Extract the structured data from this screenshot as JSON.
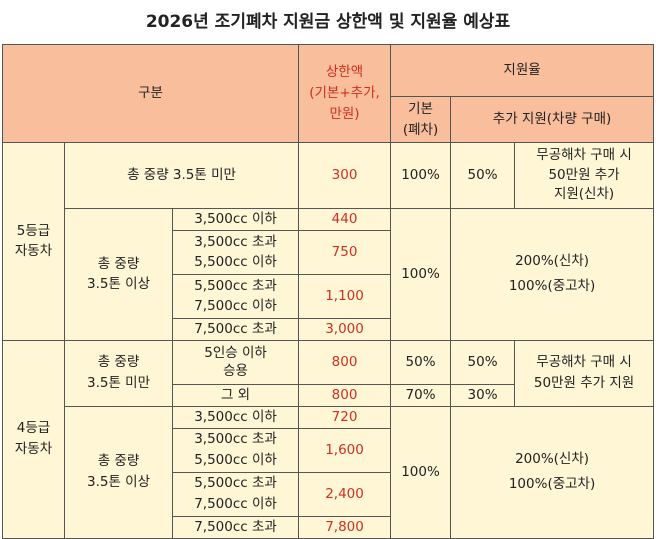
{
  "title": "2026년 조기폐차 지원금 상한액 및 지원율 예상표",
  "header": {
    "category": "구분",
    "max_amount": "상한액\n(기본+추가,\n만원)",
    "support_rate": "지원율",
    "basic": "기본\n(폐차)",
    "additional": "추가 지원(차량 구매)"
  },
  "grade5": {
    "label": "5등급\n자동차",
    "under": {
      "weight": "총 중량 3.5톤 미만",
      "amount": "300",
      "basic": "100%",
      "add_pct": "50%",
      "add_note": "무공해차 구매 시\n50만원 추가\n지원(신차)"
    },
    "over": {
      "weight": "총 중량\n3.5톤 이상",
      "rows": [
        {
          "cc": "3,500cc 이하",
          "amount": "440"
        },
        {
          "cc": "3,500cc 초과\n5,500cc 이하",
          "amount": "750"
        },
        {
          "cc": "5,500cc 초과\n7,500cc 이하",
          "amount": "1,100"
        },
        {
          "cc": "7,500cc 초과",
          "amount": "3,000"
        }
      ],
      "basic": "100%",
      "additional": "200%(신차)\n100%(중고차)"
    }
  },
  "grade4": {
    "label": "4등급\n자동차",
    "under": {
      "weight": "총 중량\n3.5톤 미만",
      "rows": [
        {
          "type": "5인승 이하\n승용",
          "amount": "800",
          "basic": "50%",
          "add_pct": "50%"
        },
        {
          "type": "그 외",
          "amount": "800",
          "basic": "70%",
          "add_pct": "30%"
        }
      ],
      "add_note": "무공해차 구매 시\n50만원 추가 지원"
    },
    "over": {
      "weight": "총 중량\n3.5톤 이상",
      "rows": [
        {
          "cc": "3,500cc 이하",
          "amount": "720"
        },
        {
          "cc": "3,500cc 초과\n5,500cc 이하",
          "amount": "1,600"
        },
        {
          "cc": "5,500cc 초과\n7,500cc 이하",
          "amount": "2,400"
        },
        {
          "cc": "7,500cc 초과",
          "amount": "7,800"
        }
      ],
      "basic": "100%",
      "additional": "200%(신차)\n100%(중고차)"
    }
  }
}
